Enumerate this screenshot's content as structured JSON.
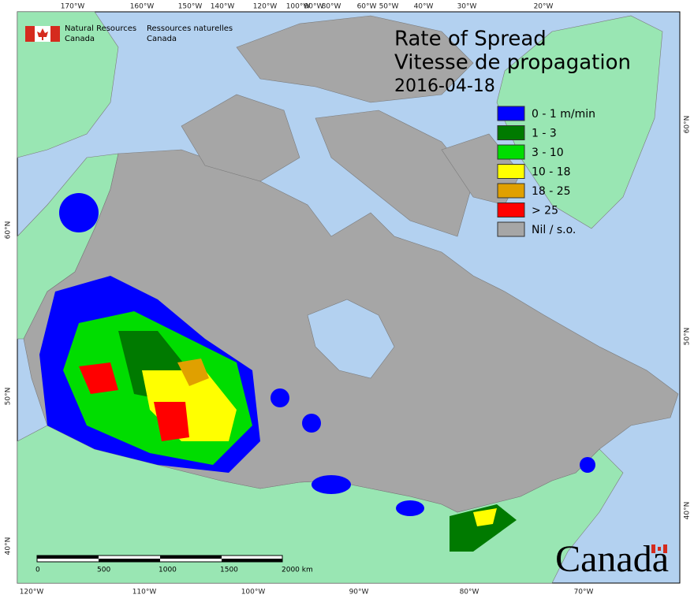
{
  "agency": {
    "en": [
      "Natural Resources",
      "Canada"
    ],
    "fr": [
      "Ressources naturelles",
      "Canada"
    ]
  },
  "title": {
    "en": "Rate of Spread",
    "fr": "Vitesse de propagation",
    "date": "2016-04-18"
  },
  "legend": [
    {
      "label": "0 - 1 m/min",
      "color": "#0000ff"
    },
    {
      "label": "1 - 3",
      "color": "#007a00"
    },
    {
      "label": "3 - 10",
      "color": "#00dd00"
    },
    {
      "label": "10 - 18",
      "color": "#ffff00"
    },
    {
      "label": "18 - 25",
      "color": "#e0a000"
    },
    {
      "label": "> 25",
      "color": "#ff0000"
    },
    {
      "label": "Nil / s.o.",
      "color": "#a6a6a6"
    }
  ],
  "graticule": {
    "top": [
      "170°W",
      "160°W",
      "150°W",
      "140°W",
      "120°W",
      "100°W",
      "90°W",
      "80°W",
      "60°W",
      "50°W",
      "40°W",
      "30°W",
      "20°W"
    ],
    "bottom": [
      "120°W",
      "110°W",
      "100°W",
      "90°W",
      "80°W",
      "70°W"
    ],
    "left": [
      "60°N",
      "50°N",
      "40°N"
    ],
    "right": [
      "60°N",
      "50°N",
      "40°N"
    ]
  },
  "scale_bar": [
    "0",
    "500",
    "1000",
    "1500",
    "2000 km"
  ],
  "wordmark": "Canada"
}
